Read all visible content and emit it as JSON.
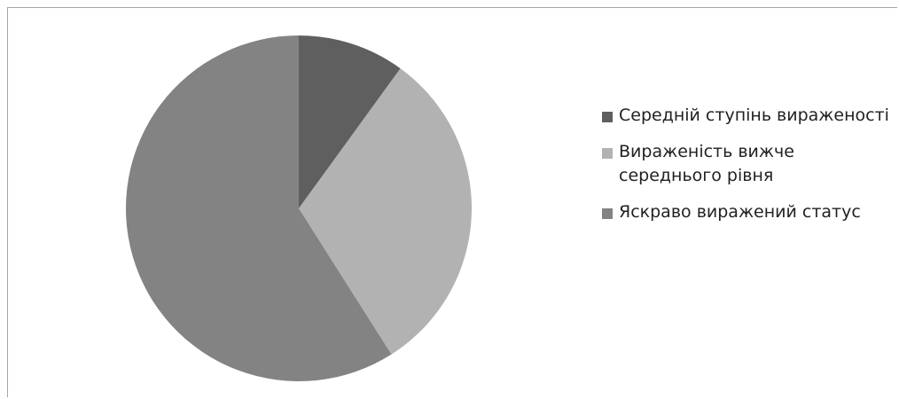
{
  "chart_data": {
    "type": "pie",
    "title": "",
    "legend_position": "right",
    "slices": [
      {
        "label": "Середній ступінь вираженості",
        "value": 10,
        "color": "#5f5f5f"
      },
      {
        "label": "Вираженість вижче середнього рівня",
        "value": 31,
        "color": "#b2b2b2"
      },
      {
        "label": "Яскраво виражений статус",
        "value": 59,
        "color": "#838383"
      }
    ]
  }
}
